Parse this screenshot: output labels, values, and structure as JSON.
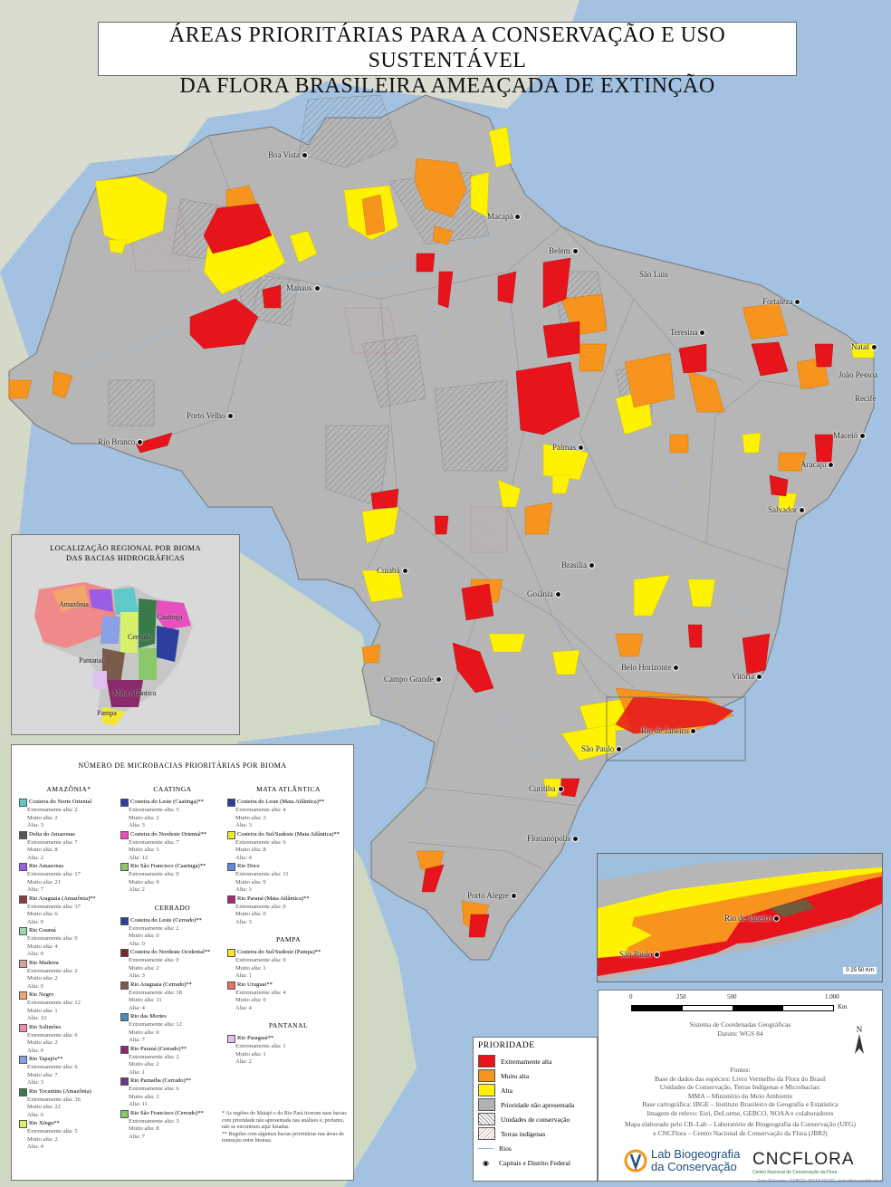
{
  "title": {
    "line1": "ÁREAS PRIORITÁRIAS PARA A CONSERVAÇÃO E USO SUSTENTÁVEL",
    "line2": "DA FLORA BRASILEIRA AMEAÇADA DE EXTINÇÃO"
  },
  "cities": [
    {
      "name": "Boa Vista"
    },
    {
      "name": "Macapá"
    },
    {
      "name": "Belém"
    },
    {
      "name": "São Luís"
    },
    {
      "name": "Manaus"
    },
    {
      "name": "Fortaleza"
    },
    {
      "name": "Teresina"
    },
    {
      "name": "Natal"
    },
    {
      "name": "João Pessoa"
    },
    {
      "name": "Recife"
    },
    {
      "name": "Porto Velho"
    },
    {
      "name": "Rio Branco"
    },
    {
      "name": "Maceió"
    },
    {
      "name": "Palmas"
    },
    {
      "name": "Aracaju"
    },
    {
      "name": "Salvador"
    },
    {
      "name": "Cuiabá"
    },
    {
      "name": "Brasília"
    },
    {
      "name": "Goiânia"
    },
    {
      "name": "Belo Horizonte"
    },
    {
      "name": "Vitória"
    },
    {
      "name": "Campo Grande"
    },
    {
      "name": "Rio de Janeiro"
    },
    {
      "name": "São Paulo"
    },
    {
      "name": "Curitiba"
    },
    {
      "name": "Florianópolis"
    },
    {
      "name": "Porto Alegre"
    }
  ],
  "inset": {
    "title_line1": "LOCALIZAÇÃO REGIONAL POR BIOMA",
    "title_line2": "DAS BACIAS HIDROGRÁFICAS",
    "biomes": [
      "Amazônia",
      "Caatinga",
      "Cerrado",
      "Pantanal",
      "Mata Atlântica",
      "Pampa"
    ]
  },
  "legend": {
    "title": "NÚMERO DE MICROBACIAS PRIORITÁRIAS POR BIOMA",
    "columns": [
      {
        "groups": [
          {
            "biome": "AMAZÔNIA*",
            "items": [
              {
                "name": "Costeira do Norte Oriental",
                "color": "#5fc8c8",
                "vals": [
                  "Extremamente alta: 2",
                  "Muito alta: 2",
                  "Alta: 3"
                ]
              },
              {
                "name": "Delta do Amazonas",
                "color": "#555555",
                "vals": [
                  "Extremamente alta: 7",
                  "Muito alta: 8",
                  "Alta: 2"
                ]
              },
              {
                "name": "Rio Amazonas",
                "color": "#9b5de5",
                "vals": [
                  "Extremamente alta: 17",
                  "Muito alta: 21",
                  "Alta: 7"
                ]
              },
              {
                "name": "Rio Araguaia (Amazônia)**",
                "color": "#8c3a3a",
                "vals": [
                  "Extremamente alta: 37",
                  "Muito alta: 6",
                  "Alta: 0"
                ]
              },
              {
                "name": "Rio Guamá",
                "color": "#9dd7b5",
                "vals": [
                  "Extremamente alta: 0",
                  "Muito alta: 4",
                  "Alta: 0"
                ]
              },
              {
                "name": "Rio Madeira",
                "color": "#d9a0a0",
                "vals": [
                  "Extremamente alta: 2",
                  "Muito alta: 2",
                  "Alta: 0"
                ]
              },
              {
                "name": "Rio Negro",
                "color": "#f2a66b",
                "vals": [
                  "Extremamente alta: 12",
                  "Muito alta: 1",
                  "Alta: 33"
                ]
              },
              {
                "name": "Rio Solimões",
                "color": "#f08fa8",
                "vals": [
                  "Extremamente alta: 6",
                  "Muito alta: 2",
                  "Alta: 0"
                ]
              },
              {
                "name": "Rio Tapajós**",
                "color": "#8aa0e6",
                "vals": [
                  "Extremamente alta: 6",
                  "Muito alta: 7",
                  "Alta: 3"
                ]
              },
              {
                "name": "Rio Tocantins (Amazônia)",
                "color": "#3a7a4a",
                "vals": [
                  "Extremamente alta: 36",
                  "Muito alta: 22",
                  "Alta: 0"
                ]
              },
              {
                "name": "Rio Xingu**",
                "color": "#d8f06a",
                "vals": [
                  "Extremamente alta: 5",
                  "Muito alta: 2",
                  "Alta: 4"
                ]
              }
            ]
          }
        ]
      },
      {
        "groups": [
          {
            "biome": "CAATINGA",
            "items": [
              {
                "name": "Costeira do Leste (Caatinga)**",
                "color": "#2b3f9e",
                "vals": [
                  "Extremamente alta: 5",
                  "Muito alta: 2",
                  "Alta: 3"
                ]
              },
              {
                "name": "Costeira do Nordeste Oriental**",
                "color": "#e84fbf",
                "vals": [
                  "Extremamente alta: 7",
                  "Muito alta: 3",
                  "Alta: 12"
                ]
              },
              {
                "name": "Rio São Francisco (Caatinga)**",
                "color": "#8bc86a",
                "vals": [
                  "Extremamente alta: 0",
                  "Muito alta: 0",
                  "Alta: 2"
                ]
              }
            ]
          },
          {
            "biome": "CERRADO",
            "items": [
              {
                "name": "Costeira do Leste (Cerrado)**",
                "color": "#2b3f9e",
                "vals": [
                  "Extremamente alta: 2",
                  "Muito alta: 0",
                  "Alta: 0"
                ]
              },
              {
                "name": "Costeira do Nordeste Ocidental**",
                "color": "#7a2a2a",
                "vals": [
                  "Extremamente alta: 0",
                  "Muito alta: 2",
                  "Alta: 3"
                ]
              },
              {
                "name": "Rio Araguaia (Cerrado)**",
                "color": "#7a5a4a",
                "vals": [
                  "Extremamente alta: 18",
                  "Muito alta: 11",
                  "Alta: 4"
                ]
              },
              {
                "name": "Rio das Mortes",
                "color": "#4a8ab8",
                "vals": [
                  "Extremamente alta: 12",
                  "Muito alta: 0",
                  "Alta: 7"
                ]
              },
              {
                "name": "Rio Paraná (Cerrado)**",
                "color": "#8a2a6a",
                "vals": [
                  "Extremamente alta: 2",
                  "Muito alta: 2",
                  "Alta: 1"
                ]
              },
              {
                "name": "Rio Parnaíba (Cerrado)**",
                "color": "#6a3a8a",
                "vals": [
                  "Extremamente alta: 6",
                  "Muito alta: 2",
                  "Alta: 11"
                ]
              },
              {
                "name": "Rio São Francisco (Cerrado)**",
                "color": "#8bc86a",
                "vals": [
                  "Extremamente alta: 3",
                  "Muito alta: 8",
                  "Alta: 7"
                ]
              }
            ]
          }
        ]
      },
      {
        "groups": [
          {
            "biome": "MATA ATLÂNTICA",
            "items": [
              {
                "name": "Costeira do Leste (Mata Atlântica)**",
                "color": "#2b3f9e",
                "vals": [
                  "Extremamente alta: 4",
                  "Muito alta: 3",
                  "Alta: 3"
                ]
              },
              {
                "name": "Costeira do Sul/Sudeste (Mata Atlântica)**",
                "color": "#f5e62a",
                "vals": [
                  "Extremamente alta: 6",
                  "Muito alta: 8",
                  "Alta: 4"
                ]
              },
              {
                "name": "Rio Doce",
                "color": "#5a8ad8",
                "vals": [
                  "Extremamente alta: 11",
                  "Muito alta: 9",
                  "Alta: 3"
                ]
              },
              {
                "name": "Rio Paraná (Mata Atlântica)**",
                "color": "#a8287a",
                "vals": [
                  "Extremamente alta: 0",
                  "Muito alta: 0",
                  "Alta: 3"
                ]
              }
            ]
          },
          {
            "biome": "PAMPA",
            "items": [
              {
                "name": "Costeira do Sul/Sudeste (Pampa)**",
                "color": "#f5e62a",
                "vals": [
                  "Extremamente alta: 0",
                  "Muito alta: 1",
                  "Alta: 1"
                ]
              },
              {
                "name": "Rio Uruguai**",
                "color": "#e87060",
                "vals": [
                  "Extremamente alta: 4",
                  "Muito alta: 0",
                  "Alta: 4"
                ]
              }
            ]
          },
          {
            "biome": "PANTANAL",
            "items": [
              {
                "name": "Rio Paraguai**",
                "color": "#e0c0f0",
                "vals": [
                  "Extremamente alta: 1",
                  "Muito alta: 1",
                  "Alta: 2"
                ]
              }
            ]
          }
        ]
      }
    ],
    "footnote1": "* As regiões do Matajó e do Rio Pará tiveram suas bacias com prioridade não apresentada nas análises e, portanto, não se encontram aqui listadas.",
    "footnote2": "** Regiões com algumas bacias prioritárias nas áreas de transição entre biomas."
  },
  "priority": {
    "title": "PRIORIDADE",
    "items": [
      {
        "label": "Extremamente alta",
        "color": "#e8141c"
      },
      {
        "label": "Muito alta",
        "color": "#f7941d"
      },
      {
        "label": "Alta",
        "color": "#fff200"
      },
      {
        "label": "Prioridade não apresentada",
        "color": "#b3b3b3"
      },
      {
        "label": "Unidades de conservação",
        "color": "hatch-gray"
      },
      {
        "label": "Terras indígenas",
        "color": "hatch-light"
      },
      {
        "label": "Rios",
        "color": "#8fb3d4"
      },
      {
        "label": "Capitais e Distrito Federal",
        "color": "#111111"
      }
    ]
  },
  "credits": {
    "scale_ticks": [
      "0",
      "250",
      "500",
      "1.000"
    ],
    "scale_unit": "Km",
    "north": "N",
    "coord_line1": "Sistema de Coordenadas Geográficas",
    "coord_line2": "Datum: WGS 84",
    "sources_head": "Fontes:",
    "sources": [
      "Base de dados das espécies: Livro Vermelho da Flora do Brasil",
      "Unidades de Conservação, Terras Indígenas e Microbacias:",
      "MMA – Ministério do Meio Ambiente",
      "Base cartográfica: IBGE – Instituto Brasileiro de Geografia e Estatística",
      "Imagem de relevo: Esri, DeLorme, GEBCO, NOAA e colaboradores"
    ],
    "made_line1": "Mapa elaborado pelo CB–Lab – Laboratório de Biogeografia da Conservação (UFG)",
    "made_line2": "e CNCFlora – Centro Nacional de Conservação da Flora (JBRJ)",
    "logo_lab_line1": "Lab Biogeografia",
    "logo_lab_line2": "da Conservação",
    "logo_cnc": "CNCFLORA",
    "logo_cnc_small": "Centro Nacional de Conservação da Flora"
  },
  "zoom": {
    "city1": "Rio de Janeiro",
    "city2": "São Paulo",
    "scale": "0  25  50 Km"
  },
  "attribution": "Esri, DeLorme, GEBCO, NOAA NGDC, and other contributors"
}
